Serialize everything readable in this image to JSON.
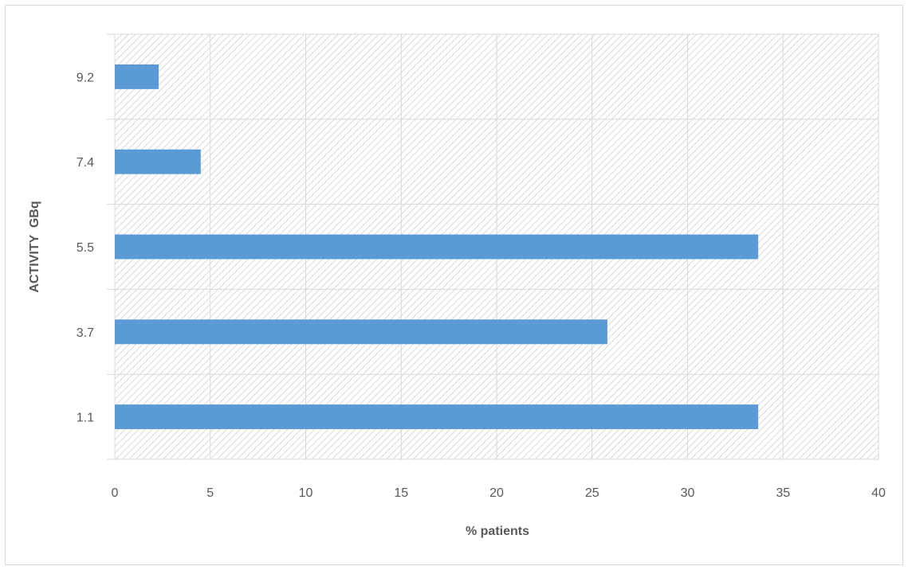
{
  "chart_data": {
    "type": "bar",
    "orientation": "horizontal",
    "categories": [
      "1.1",
      "3.7",
      "5.5",
      "7.4",
      "9.2"
    ],
    "values": [
      33.7,
      25.8,
      33.7,
      4.5,
      2.3
    ],
    "xlabel": "% patients",
    "ylabel": "ACTIVITY  GBq",
    "xlim": [
      0,
      40
    ],
    "x_ticks": [
      "0",
      "5",
      "10",
      "15",
      "20",
      "25",
      "30",
      "35",
      "40"
    ],
    "grid": true,
    "plot_background": "diagonal hatch pattern",
    "bar_color": "#5b9bd5",
    "grid_color": "#d9d9d9",
    "hatch_color": "#d0d0d0"
  }
}
